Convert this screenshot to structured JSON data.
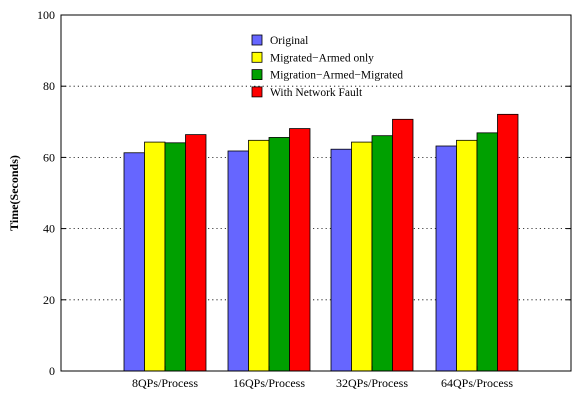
{
  "chart_data": {
    "type": "bar",
    "title": "",
    "xlabel": "",
    "ylabel": "Time(Seconds)",
    "ylim": [
      0,
      100
    ],
    "yticks": [
      0,
      20,
      40,
      60,
      80,
      100
    ],
    "grid": "horizontal-dotted",
    "legend_position": "top-center",
    "categories": [
      "8QPs/Process",
      "16QPs/Process",
      "32QPs/Process",
      "64QPs/Process"
    ],
    "series": [
      {
        "name": "Original",
        "color": "#6666ff",
        "values": [
          61.3,
          61.8,
          62.3,
          63.2
        ]
      },
      {
        "name": "Migrated−Armed only",
        "color": "#ffff00",
        "values": [
          64.3,
          64.8,
          64.3,
          64.8
        ]
      },
      {
        "name": "Migration−Armed−Migrated",
        "color": "#00a000",
        "values": [
          64.1,
          65.6,
          66.1,
          66.9
        ]
      },
      {
        "name": "With Network Fault",
        "color": "#ff0000",
        "values": [
          66.4,
          68.1,
          70.7,
          72.1
        ]
      }
    ]
  }
}
